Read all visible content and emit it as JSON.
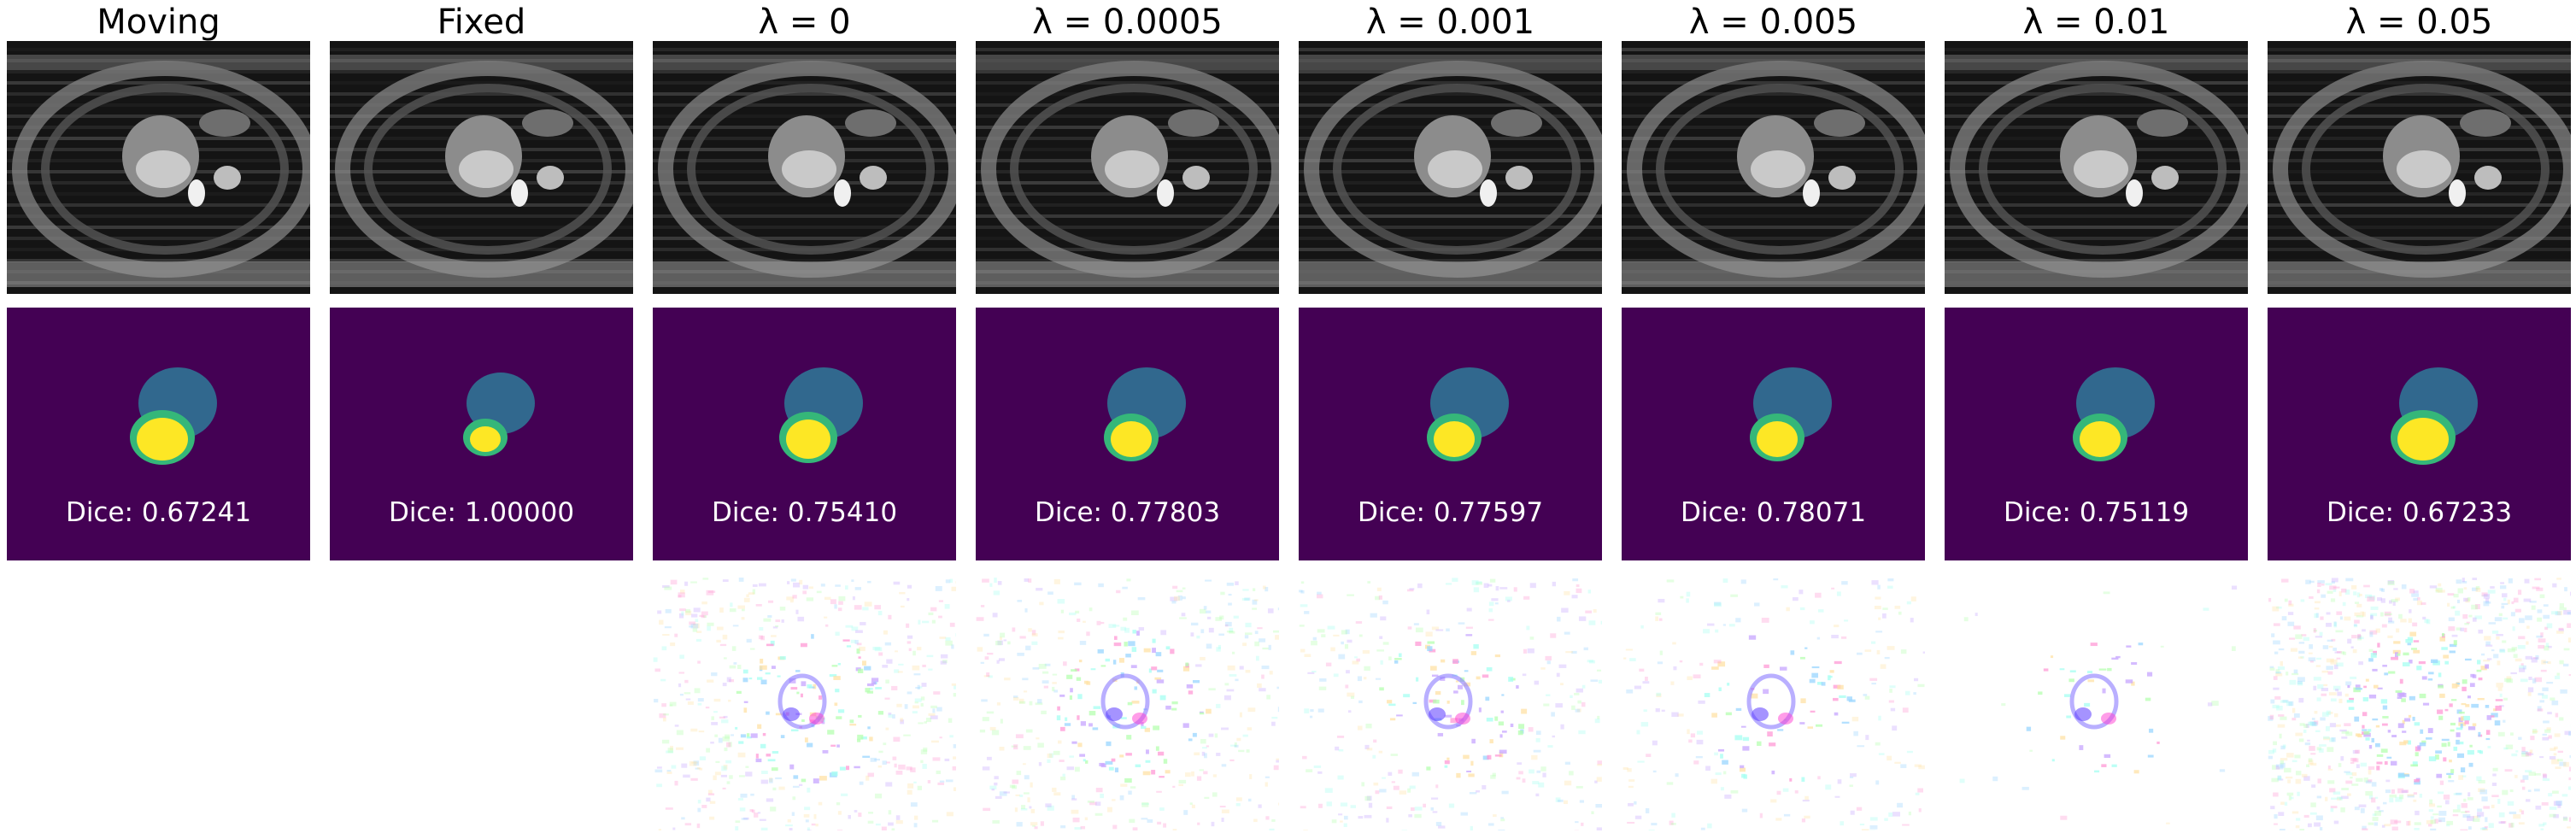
{
  "columns": [
    {
      "title": "Moving",
      "dice": "Dice: 0.67241",
      "flow": false
    },
    {
      "title": "Fixed",
      "dice": "Dice: 1.00000",
      "flow": false
    },
    {
      "title": "λ = 0",
      "dice": "Dice: 0.75410",
      "flow": true
    },
    {
      "title": "λ = 0.0005",
      "dice": "Dice: 0.77803",
      "flow": true
    },
    {
      "title": "λ = 0.001",
      "dice": "Dice: 0.77597",
      "flow": true
    },
    {
      "title": "λ = 0.005",
      "dice": "Dice: 0.78071",
      "flow": true
    },
    {
      "title": "λ = 0.01",
      "dice": "Dice: 0.75119",
      "flow": true
    },
    {
      "title": "λ = 0.05",
      "dice": "Dice: 0.67233",
      "flow": true
    }
  ],
  "colors": {
    "segmentation_background": "#440154",
    "segmentation_outer": "#31688e",
    "segmentation_ring": "#35b779",
    "segmentation_core": "#fde725",
    "mri_background": "#151515"
  }
}
